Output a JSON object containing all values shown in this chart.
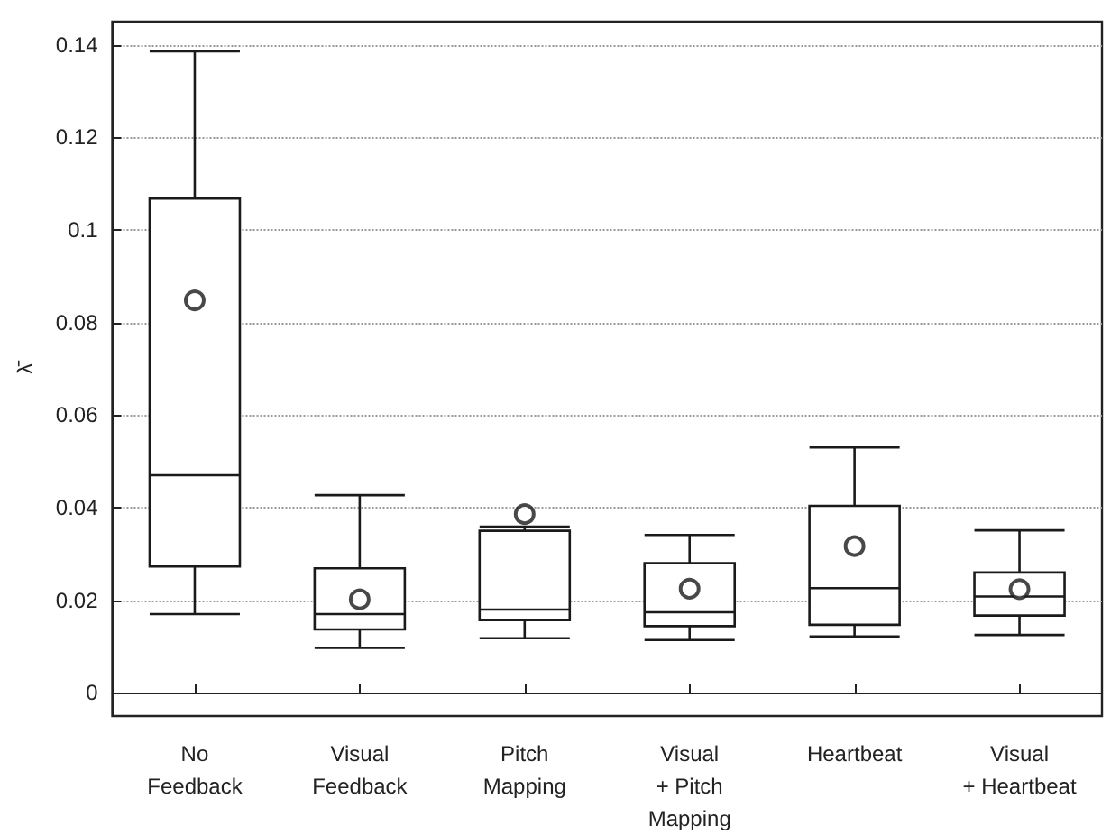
{
  "chart_data": {
    "type": "box",
    "ylabel": "λ̄",
    "categories": [
      "No Feedback",
      "Visual Feedback",
      "Pitch Mapping",
      "Visual + Pitch Mapping",
      "Heartbeat",
      "Visual + Heartbeat"
    ],
    "boxes": [
      {
        "low": 0.017,
        "q1": 0.0273,
        "median": 0.047,
        "q3": 0.1068,
        "high": 0.1386,
        "mean": 0.0848
      },
      {
        "low": 0.0097,
        "q1": 0.0137,
        "median": 0.017,
        "q3": 0.0269,
        "high": 0.0427,
        "mean": 0.0202
      },
      {
        "low": 0.0118,
        "q1": 0.0157,
        "median": 0.018,
        "q3": 0.035,
        "high": 0.0359,
        "mean": 0.0386
      },
      {
        "low": 0.0114,
        "q1": 0.0144,
        "median": 0.0174,
        "q3": 0.028,
        "high": 0.0341,
        "mean": 0.0225
      },
      {
        "low": 0.0122,
        "q1": 0.0147,
        "median": 0.0226,
        "q3": 0.0404,
        "high": 0.053,
        "mean": 0.0317
      },
      {
        "low": 0.0125,
        "q1": 0.0167,
        "median": 0.0208,
        "q3": 0.026,
        "high": 0.0351,
        "mean": 0.0224
      }
    ],
    "color": "#1a1a1a",
    "ylim": [
      -0.005,
      0.145
    ],
    "yticks": [
      0,
      0.02,
      0.04,
      0.06,
      0.08,
      0.1,
      0.12,
      0.14
    ],
    "grid": "y",
    "marker": "circle"
  }
}
